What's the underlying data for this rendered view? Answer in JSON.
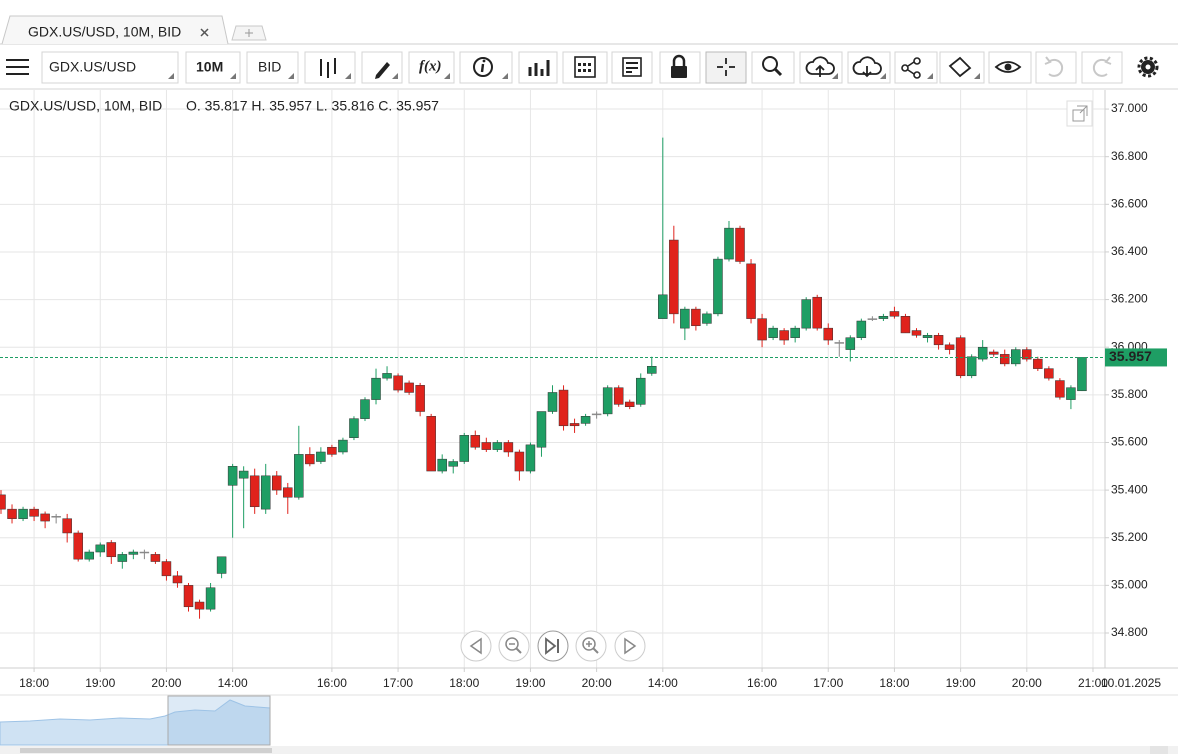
{
  "toolbar": {
    "tab_title": "GDX.US/USD, 10M, BID",
    "symbol": "GDX.US/USD",
    "interval": "10M",
    "price_type": "BID",
    "function_button": "f(x)"
  },
  "chart_data": {
    "type": "candlestick",
    "title": "GDX.US/USD, 10M, BID",
    "ohlc_text": "O. 35.817 H. 35.957 L. 35.816 C. 35.957",
    "up_color": "#1e9e64",
    "down_color": "#e0231c",
    "doji_color": "#888888",
    "open": [
      35.38,
      35.32,
      35.28,
      35.32,
      35.3,
      35.29,
      35.28,
      35.22,
      35.11,
      35.14,
      35.18,
      35.1,
      35.13,
      35.14,
      35.13,
      35.1,
      35.04,
      35.0,
      34.93,
      34.9,
      35.05,
      35.42,
      35.45,
      35.46,
      35.32,
      35.46,
      35.41,
      35.37,
      35.55,
      35.52,
      35.58,
      35.56,
      35.62,
      35.7,
      35.78,
      35.87,
      35.88,
      35.85,
      35.84,
      35.71,
      35.48,
      35.5,
      35.52,
      35.63,
      35.6,
      35.57,
      35.6,
      35.56,
      35.48,
      35.58,
      35.73,
      35.82,
      35.68,
      35.68,
      35.72,
      35.72,
      35.83,
      35.77,
      35.76,
      35.89,
      36.12,
      36.45,
      36.08,
      36.16,
      36.1,
      36.14,
      36.37,
      36.5,
      36.35,
      36.12,
      36.04,
      36.07,
      36.04,
      36.08,
      36.21,
      36.08,
      36.02,
      35.99,
      36.04,
      36.12,
      36.12,
      36.15,
      36.13,
      36.07,
      36.04,
      36.05,
      36.01,
      36.04,
      35.88,
      35.95,
      35.98,
      35.97,
      35.93,
      35.99,
      35.95,
      35.91,
      35.86,
      35.78,
      35.817
    ],
    "high": [
      35.4,
      35.34,
      35.33,
      35.33,
      35.31,
      35.3,
      35.3,
      35.23,
      35.15,
      35.18,
      35.19,
      35.14,
      35.15,
      35.15,
      35.14,
      35.11,
      35.06,
      35.01,
      34.94,
      35.01,
      35.12,
      35.51,
      35.5,
      35.49,
      35.51,
      35.48,
      35.43,
      35.67,
      35.58,
      35.58,
      35.59,
      35.62,
      35.71,
      35.79,
      35.91,
      35.92,
      35.89,
      35.86,
      35.85,
      35.72,
      35.55,
      35.53,
      35.64,
      35.65,
      35.62,
      35.61,
      35.61,
      35.57,
      35.6,
      35.73,
      35.84,
      35.84,
      35.7,
      35.72,
      35.73,
      35.84,
      35.84,
      35.78,
      35.89,
      35.96,
      36.88,
      36.51,
      36.17,
      36.17,
      36.15,
      36.38,
      36.53,
      36.51,
      36.37,
      36.14,
      36.09,
      36.08,
      36.09,
      36.21,
      36.22,
      36.1,
      36.03,
      36.05,
      36.12,
      36.13,
      36.14,
      36.17,
      36.14,
      36.08,
      36.06,
      36.06,
      36.02,
      36.05,
      35.97,
      36.03,
      35.99,
      35.99,
      36.0,
      36.0,
      35.96,
      35.92,
      35.87,
      35.84,
      35.957
    ],
    "low": [
      35.3,
      35.26,
      35.27,
      35.27,
      35.24,
      35.26,
      35.18,
      35.1,
      35.1,
      35.12,
      35.09,
      35.07,
      35.11,
      35.11,
      35.09,
      35.02,
      34.99,
      34.89,
      34.86,
      34.89,
      35.03,
      35.2,
      35.24,
      35.3,
      35.3,
      35.38,
      35.3,
      35.36,
      35.5,
      35.51,
      35.54,
      35.55,
      35.61,
      35.69,
      35.76,
      35.86,
      35.81,
      35.8,
      35.71,
      35.48,
      35.47,
      35.47,
      35.51,
      35.57,
      35.56,
      35.56,
      35.54,
      35.44,
      35.47,
      35.54,
      35.72,
      35.65,
      35.64,
      35.67,
      35.7,
      35.71,
      35.75,
      35.74,
      35.75,
      35.88,
      36.12,
      36.1,
      36.03,
      36.07,
      36.09,
      36.13,
      36.36,
      36.35,
      36.1,
      36.0,
      36.03,
      36.01,
      36.02,
      36.07,
      36.07,
      36.01,
      35.96,
      35.94,
      36.03,
      36.11,
      36.11,
      36.12,
      36.06,
      36.04,
      36.02,
      35.99,
      35.97,
      35.87,
      35.87,
      35.94,
      35.96,
      35.92,
      35.92,
      35.94,
      35.9,
      35.86,
      35.78,
      35.74,
      35.816
    ],
    "close": [
      35.32,
      35.28,
      35.32,
      35.29,
      35.27,
      35.29,
      35.22,
      35.11,
      35.14,
      35.17,
      35.12,
      35.13,
      35.14,
      35.14,
      35.1,
      35.04,
      35.01,
      34.91,
      34.9,
      34.99,
      35.12,
      35.5,
      35.48,
      35.33,
      35.46,
      35.4,
      35.37,
      35.55,
      35.51,
      35.56,
      35.55,
      35.61,
      35.7,
      35.78,
      35.87,
      35.89,
      35.82,
      35.81,
      35.73,
      35.48,
      35.53,
      35.52,
      35.63,
      35.58,
      35.57,
      35.6,
      35.56,
      35.48,
      35.59,
      35.73,
      35.81,
      35.67,
      35.67,
      35.71,
      35.72,
      35.83,
      35.76,
      35.75,
      35.87,
      35.92,
      36.22,
      36.14,
      36.16,
      36.09,
      36.14,
      36.37,
      36.5,
      36.36,
      36.12,
      36.03,
      36.08,
      36.03,
      36.08,
      36.2,
      36.08,
      36.03,
      36.02,
      36.04,
      36.11,
      36.12,
      36.13,
      36.13,
      36.06,
      36.05,
      36.05,
      36.01,
      35.99,
      35.88,
      35.96,
      36.0,
      35.97,
      35.93,
      35.99,
      35.95,
      35.91,
      35.87,
      35.79,
      35.83,
      35.957
    ],
    "xlim": [
      -0.09,
      100.09
    ],
    "xticks": [
      {
        "value": 3,
        "label": "18:00"
      },
      {
        "value": 9,
        "label": "19:00"
      },
      {
        "value": 15,
        "label": "20:00"
      },
      {
        "value": 21,
        "label": "14:00"
      },
      {
        "value": 30,
        "label": "16:00"
      },
      {
        "value": 36,
        "label": "17:00"
      },
      {
        "value": 42,
        "label": "18:00"
      },
      {
        "value": 48,
        "label": "19:00"
      },
      {
        "value": 54,
        "label": "20:00"
      },
      {
        "value": 60,
        "label": "14:00"
      },
      {
        "value": 69,
        "label": "16:00"
      },
      {
        "value": 75,
        "label": "17:00"
      },
      {
        "value": 81,
        "label": "18:00"
      },
      {
        "value": 87,
        "label": "19:00"
      },
      {
        "value": 93,
        "label": "20:00"
      },
      {
        "value": 99,
        "label": "21:00"
      }
    ],
    "x_date_label": "10.01.2025",
    "ylim": [
      34.653,
      37.08
    ],
    "yticks": [
      {
        "value": 34.8,
        "label": "34.800"
      },
      {
        "value": 35.0,
        "label": "35.000"
      },
      {
        "value": 35.2,
        "label": "35.200"
      },
      {
        "value": 35.4,
        "label": "35.400"
      },
      {
        "value": 35.6,
        "label": "35.600"
      },
      {
        "value": 35.8,
        "label": "35.800"
      },
      {
        "value": 36.0,
        "label": "36.000"
      },
      {
        "value": 36.2,
        "label": "36.200"
      },
      {
        "value": 36.4,
        "label": "36.400"
      },
      {
        "value": 36.6,
        "label": "36.600"
      },
      {
        "value": 36.8,
        "label": "36.800"
      },
      {
        "value": 37.0,
        "label": "37.000"
      }
    ],
    "grid": true,
    "last_price": {
      "value": 35.957,
      "label": "35.957"
    }
  }
}
